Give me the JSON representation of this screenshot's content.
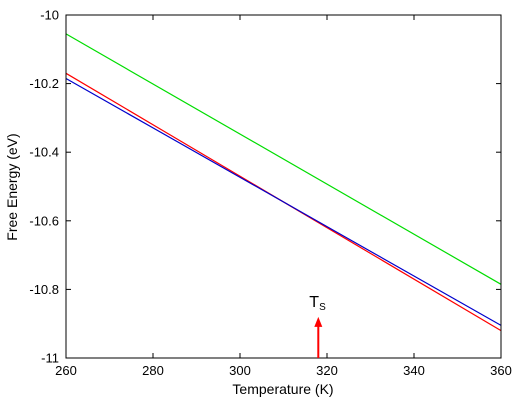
{
  "chart_data": {
    "type": "line",
    "title": "",
    "xlabel": "Temperature (K)",
    "ylabel": "Free Energy (eV)",
    "xlim": [
      260,
      360
    ],
    "ylim": [
      -11,
      -10
    ],
    "xticks": [
      "260",
      "280",
      "300",
      "320",
      "340",
      "360"
    ],
    "yticks": [
      "-10",
      "-10.2",
      "-10.4",
      "-10.6",
      "-10.8",
      "-11"
    ],
    "grid": false,
    "legend": "none",
    "series": [
      {
        "color": "#00dd00",
        "x": [
          260,
          360
        ],
        "y": [
          -10.055,
          -10.785
        ]
      },
      {
        "color": "#ff0000",
        "x": [
          260,
          360
        ],
        "y": [
          -10.17,
          -10.92
        ]
      },
      {
        "color": "#0000cc",
        "x": [
          260,
          360
        ],
        "y": [
          -10.185,
          -10.905
        ]
      }
    ],
    "annotation": {
      "text": "T",
      "subscript": "S",
      "x": 318,
      "arrow_color": "#ff0000",
      "arrow_tip_y": -10.88
    }
  }
}
